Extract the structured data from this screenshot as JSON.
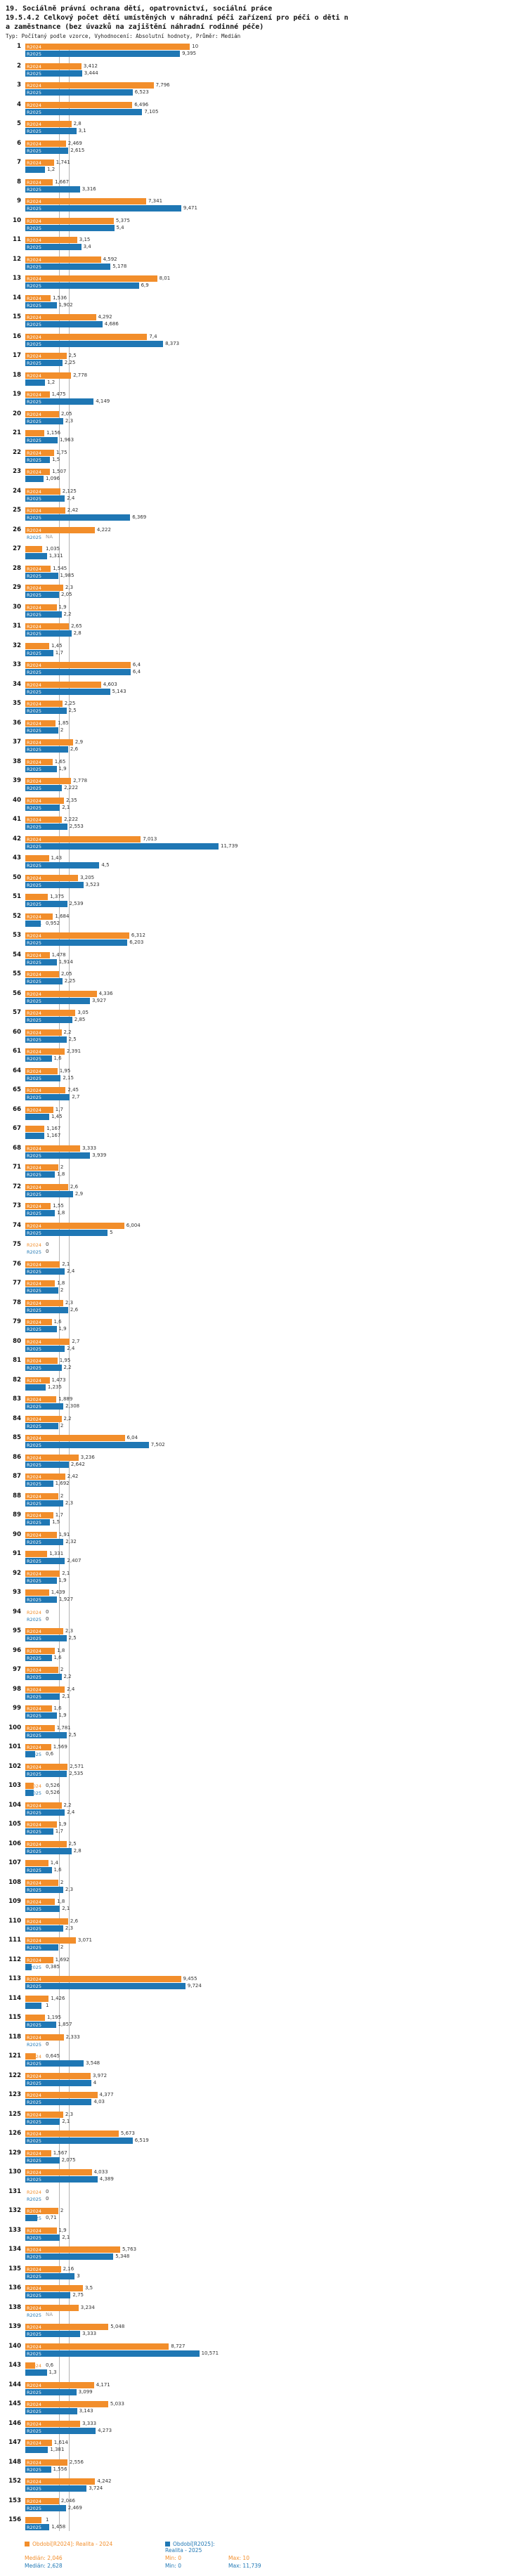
{
  "header": {
    "title_line1": "19. Sociálně právní ochrana dětí, opatrovnictví, sociální práce",
    "title_line2": "19.5.4.2 Celkový počet dětí umístěných v náhradní péči zařízení pro péči o děti n",
    "title_line3": "a zaměstnance (bez úvazků na zajištění náhradní rodinné péče)",
    "meta": "Typ: Počítaný podle vzorce, Vyhodnocení: Absolutní hodnoty, Průměr: Medián"
  },
  "chart_data": {
    "type": "bar",
    "orientation": "horizontal",
    "xlim": [
      0,
      11.739
    ],
    "grid": "median-lines-only",
    "legend_position": "bottom",
    "series": [
      {
        "name": "R2024",
        "label": "Období[R2024]: Realita - 2024",
        "color": "#f28e2b",
        "median": 2.046,
        "min": 0,
        "max": 10
      },
      {
        "name": "R2025",
        "label": "Období[R2025]: Realita - 2025",
        "color": "#1f77b4",
        "median": 2.628,
        "min": 0,
        "max": 11.739
      }
    ],
    "rows_format": [
      "id",
      "r2024",
      "r2025"
    ],
    "rows": [
      [
        1,
        10,
        9.395
      ],
      [
        2,
        3.412,
        3.444
      ],
      [
        3,
        7.796,
        6.523
      ],
      [
        4,
        6.496,
        7.105
      ],
      [
        5,
        2.8,
        3.1
      ],
      [
        6,
        2.469,
        2.615
      ],
      [
        7,
        1.741,
        1.2
      ],
      [
        8,
        1.667,
        3.316
      ],
      [
        9,
        7.341,
        9.471
      ],
      [
        10,
        5.375,
        5.4
      ],
      [
        11,
        3.15,
        3.4
      ],
      [
        12,
        4.592,
        5.178
      ],
      [
        13,
        8.01,
        6.9
      ],
      [
        14,
        1.536,
        1.902
      ],
      [
        15,
        4.292,
        4.686
      ],
      [
        16,
        7.4,
        8.373
      ],
      [
        17,
        2.5,
        2.25
      ],
      [
        18,
        2.778,
        1.2
      ],
      [
        19,
        1.475,
        4.149
      ],
      [
        20,
        2.05,
        2.3
      ],
      [
        21,
        1.156,
        1.963
      ],
      [
        22,
        1.75,
        1.5
      ],
      [
        23,
        1.507,
        1.096
      ],
      [
        24,
        2.125,
        2.4
      ],
      [
        25,
        2.42,
        6.369
      ],
      [
        26,
        4.222,
        null
      ],
      [
        27,
        1.035,
        1.311
      ],
      [
        28,
        1.545,
        1.985
      ],
      [
        29,
        2.3,
        2.05
      ],
      [
        30,
        1.9,
        2.2
      ],
      [
        31,
        2.65,
        2.8
      ],
      [
        32,
        1.45,
        1.7
      ],
      [
        33,
        6.4,
        6.4
      ],
      [
        34,
        4.603,
        5.143
      ],
      [
        35,
        2.25,
        2.5
      ],
      [
        36,
        1.85,
        2
      ],
      [
        37,
        2.9,
        2.6
      ],
      [
        38,
        1.65,
        1.9
      ],
      [
        39,
        2.778,
        2.222
      ],
      [
        40,
        2.35,
        2.1
      ],
      [
        41,
        2.222,
        2.553
      ],
      [
        42,
        7.013,
        11.739
      ],
      [
        43,
        1.43,
        4.5
      ],
      [
        50,
        3.205,
        3.523
      ],
      [
        51,
        1.375,
        2.539
      ],
      [
        52,
        1.684,
        0.952
      ],
      [
        53,
        6.312,
        6.203
      ],
      [
        54,
        1.478,
        1.914
      ],
      [
        55,
        2.05,
        2.25
      ],
      [
        56,
        4.336,
        3.927
      ],
      [
        57,
        3.05,
        2.85
      ],
      [
        60,
        2.2,
        2.5
      ],
      [
        61,
        2.391,
        1.6
      ],
      [
        64,
        1.95,
        2.15
      ],
      [
        65,
        2.45,
        2.7
      ],
      [
        66,
        1.7,
        1.45
      ],
      [
        67,
        1.167,
        1.167
      ],
      [
        68,
        3.333,
        3.939
      ],
      [
        71,
        2,
        1.8
      ],
      [
        72,
        2.6,
        2.9
      ],
      [
        73,
        1.55,
        1.8
      ],
      [
        74,
        6.004,
        5
      ],
      [
        75,
        0,
        0
      ],
      [
        76,
        2.1,
        2.4
      ],
      [
        77,
        1.8,
        2
      ],
      [
        78,
        2.3,
        2.6
      ],
      [
        79,
        1.6,
        1.9
      ],
      [
        80,
        2.7,
        2.4
      ],
      [
        81,
        1.95,
        2.2
      ],
      [
        82,
        1.473,
        1.235
      ],
      [
        83,
        1.889,
        2.308
      ],
      [
        84,
        2.2,
        2
      ],
      [
        85,
        6.04,
        7.502
      ],
      [
        86,
        3.236,
        2.642
      ],
      [
        87,
        2.42,
        1.692
      ],
      [
        88,
        2,
        2.3
      ],
      [
        89,
        1.7,
        1.5
      ],
      [
        90,
        1.91,
        2.32
      ],
      [
        91,
        1.331,
        2.407
      ],
      [
        92,
        2.1,
        1.9
      ],
      [
        93,
        1.439,
        1.927
      ],
      [
        94,
        0,
        0
      ],
      [
        95,
        2.3,
        2.5
      ],
      [
        96,
        1.8,
        1.6
      ],
      [
        97,
        2,
        2.2
      ],
      [
        98,
        2.4,
        2.1
      ],
      [
        99,
        1.6,
        1.9
      ],
      [
        100,
        1.781,
        2.5
      ],
      [
        101,
        1.569,
        0.6
      ],
      [
        102,
        2.571,
        2.535
      ],
      [
        103,
        0.526,
        0.526
      ],
      [
        104,
        2.2,
        2.4
      ],
      [
        105,
        1.9,
        1.7
      ],
      [
        106,
        2.5,
        2.8
      ],
      [
        107,
        1.4,
        1.6
      ],
      [
        108,
        2,
        2.3
      ],
      [
        109,
        1.8,
        2.1
      ],
      [
        110,
        2.6,
        2.3
      ],
      [
        111,
        3.071,
        2
      ],
      [
        112,
        1.692,
        0.385
      ],
      [
        113,
        9.455,
        9.724
      ],
      [
        114,
        1.426,
        1
      ],
      [
        115,
        1.195,
        1.857
      ],
      [
        118,
        2.333,
        0
      ],
      [
        121,
        0.645,
        3.548
      ],
      [
        122,
        3.972,
        4
      ],
      [
        123,
        4.377,
        4.03
      ],
      [
        125,
        2.3,
        2.1
      ],
      [
        126,
        5.673,
        6.519
      ],
      [
        129,
        1.567,
        2.075
      ],
      [
        130,
        4.033,
        4.389
      ],
      [
        131,
        0,
        0
      ],
      [
        132,
        2,
        0.71
      ],
      [
        133,
        1.9,
        2.1
      ],
      [
        134,
        5.763,
        5.348
      ],
      [
        135,
        2.16,
        3
      ],
      [
        136,
        3.5,
        2.75
      ],
      [
        138,
        3.234,
        null
      ],
      [
        139,
        5.048,
        3.333
      ],
      [
        140,
        8.727,
        10.571
      ],
      [
        143,
        0.6,
        1.3
      ],
      [
        144,
        4.171,
        3.099
      ],
      [
        145,
        5.033,
        3.143
      ],
      [
        146,
        3.333,
        4.273
      ],
      [
        147,
        1.614,
        1.381
      ],
      [
        148,
        2.556,
        1.556
      ],
      [
        152,
        4.242,
        3.724
      ],
      [
        153,
        2.046,
        2.469
      ],
      [
        156,
        1,
        1.458
      ]
    ],
    "na_label": "NA"
  },
  "legend": {
    "r2024": {
      "label": "Období[R2024]: Realita - 2024",
      "median": "Medián: 2,046",
      "min": "Min: 0",
      "max": "Max: 10"
    },
    "r2025": {
      "label": "Období[R2025]: Realita - 2025",
      "median": "Medián: 2,628",
      "min": "Min: 0",
      "max": "Max: 11,739"
    }
  }
}
